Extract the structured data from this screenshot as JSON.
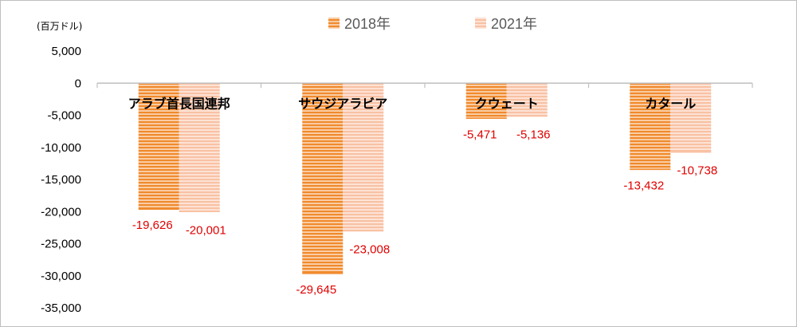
{
  "chart_data": {
    "type": "bar",
    "unit_label": "(百万ドル)",
    "categories": [
      "アラブ首長国連邦",
      "サウジアラビア",
      "クウェート",
      "カタール"
    ],
    "series": [
      {
        "name": "2018年",
        "values": [
          -19626,
          -29645,
          -5471,
          -13432
        ],
        "value_labels": [
          "-19,626",
          "-29,645",
          "-5,471",
          "-13,432"
        ],
        "color": "#f08a2c"
      },
      {
        "name": "2021年",
        "values": [
          -20001,
          -23008,
          -5136,
          -10738
        ],
        "value_labels": [
          "-20,001",
          "-23,008",
          "-5,136",
          "-10,738"
        ],
        "color": "#f8c1a3"
      }
    ],
    "ylim": [
      -35000,
      5000
    ],
    "yticks": [
      5000,
      0,
      -5000,
      -10000,
      -15000,
      -20000,
      -25000,
      -30000,
      -35000
    ],
    "ytick_labels": [
      "5,000",
      "0",
      "-5,000",
      "-10,000",
      "-15,000",
      "-20,000",
      "-25,000",
      "-30,000",
      "-35,000"
    ],
    "legend_position": "top",
    "grid": false,
    "data_label_color": "#e00000"
  }
}
